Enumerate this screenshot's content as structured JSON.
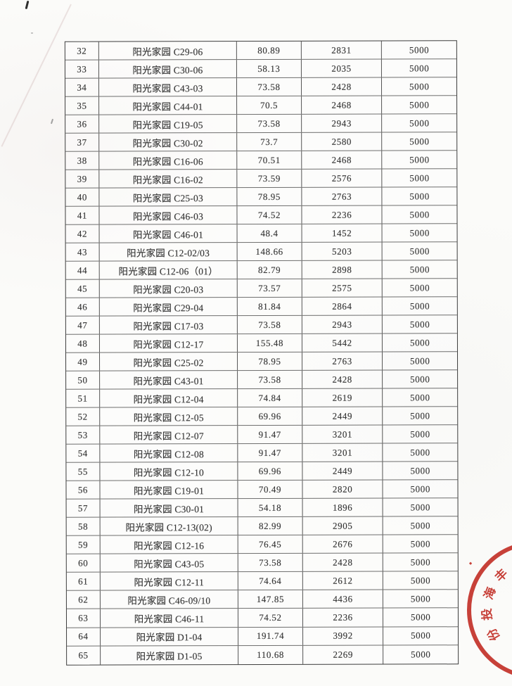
{
  "table": {
    "rows": [
      {
        "no": "32",
        "name": "阳光家园 C29-06",
        "area": "80.89",
        "amount": "2831",
        "deposit": "5000"
      },
      {
        "no": "33",
        "name": "阳光家园 C30-06",
        "area": "58.13",
        "amount": "2035",
        "deposit": "5000"
      },
      {
        "no": "34",
        "name": "阳光家园 C43-03",
        "area": "73.58",
        "amount": "2428",
        "deposit": "5000"
      },
      {
        "no": "35",
        "name": "阳光家园 C44-01",
        "area": "70.5",
        "amount": "2468",
        "deposit": "5000"
      },
      {
        "no": "36",
        "name": "阳光家园 C19-05",
        "area": "73.58",
        "amount": "2943",
        "deposit": "5000"
      },
      {
        "no": "37",
        "name": "阳光家园 C30-02",
        "area": "73.7",
        "amount": "2580",
        "deposit": "5000"
      },
      {
        "no": "38",
        "name": "阳光家园 C16-06",
        "area": "70.51",
        "amount": "2468",
        "deposit": "5000"
      },
      {
        "no": "39",
        "name": "阳光家园 C16-02",
        "area": "73.59",
        "amount": "2576",
        "deposit": "5000"
      },
      {
        "no": "40",
        "name": "阳光家园 C25-03",
        "area": "78.95",
        "amount": "2763",
        "deposit": "5000"
      },
      {
        "no": "41",
        "name": "阳光家园 C46-03",
        "area": "74.52",
        "amount": "2236",
        "deposit": "5000"
      },
      {
        "no": "42",
        "name": "阳光家园 C46-01",
        "area": "48.4",
        "amount": "1452",
        "deposit": "5000"
      },
      {
        "no": "43",
        "name": "阳光家园 C12-02/03",
        "area": "148.66",
        "amount": "5203",
        "deposit": "5000"
      },
      {
        "no": "44",
        "name": "阳光家园 C12-06（01）",
        "area": "82.79",
        "amount": "2898",
        "deposit": "5000"
      },
      {
        "no": "45",
        "name": "阳光家园 C20-03",
        "area": "73.57",
        "amount": "2575",
        "deposit": "5000"
      },
      {
        "no": "46",
        "name": "阳光家园 C29-04",
        "area": "81.84",
        "amount": "2864",
        "deposit": "5000"
      },
      {
        "no": "47",
        "name": "阳光家园 C17-03",
        "area": "73.58",
        "amount": "2943",
        "deposit": "5000"
      },
      {
        "no": "48",
        "name": "阳光家园 C12-17",
        "area": "155.48",
        "amount": "5442",
        "deposit": "5000"
      },
      {
        "no": "49",
        "name": "阳光家园 C25-02",
        "area": "78.95",
        "amount": "2763",
        "deposit": "5000"
      },
      {
        "no": "50",
        "name": "阳光家园 C43-01",
        "area": "73.58",
        "amount": "2428",
        "deposit": "5000"
      },
      {
        "no": "51",
        "name": "阳光家园 C12-04",
        "area": "74.84",
        "amount": "2619",
        "deposit": "5000"
      },
      {
        "no": "52",
        "name": "阳光家园 C12-05",
        "area": "69.96",
        "amount": "2449",
        "deposit": "5000"
      },
      {
        "no": "53",
        "name": "阳光家园 C12-07",
        "area": "91.47",
        "amount": "3201",
        "deposit": "5000"
      },
      {
        "no": "54",
        "name": "阳光家园 C12-08",
        "area": "91.47",
        "amount": "3201",
        "deposit": "5000"
      },
      {
        "no": "55",
        "name": "阳光家园 C12-10",
        "area": "69.96",
        "amount": "2449",
        "deposit": "5000"
      },
      {
        "no": "56",
        "name": "阳光家园 C19-01",
        "area": "70.49",
        "amount": "2820",
        "deposit": "5000"
      },
      {
        "no": "57",
        "name": "阳光家园 C30-01",
        "area": "54.18",
        "amount": "1896",
        "deposit": "5000"
      },
      {
        "no": "58",
        "name": "阳光家园 C12-13(02)",
        "area": "82.99",
        "amount": "2905",
        "deposit": "5000"
      },
      {
        "no": "59",
        "name": "阳光家园 C12-16",
        "area": "76.45",
        "amount": "2676",
        "deposit": "5000"
      },
      {
        "no": "60",
        "name": "阳光家园 C43-05",
        "area": "73.58",
        "amount": "2428",
        "deposit": "5000"
      },
      {
        "no": "61",
        "name": "阳光家园 C12-11",
        "area": "74.64",
        "amount": "2612",
        "deposit": "5000"
      },
      {
        "no": "62",
        "name": "阳光家园 C46-09/10",
        "area": "147.85",
        "amount": "4436",
        "deposit": "5000"
      },
      {
        "no": "63",
        "name": "阳光家园 C46-11",
        "area": "74.52",
        "amount": "2236",
        "deposit": "5000"
      },
      {
        "no": "64",
        "name": "阳光家园 D1-04",
        "area": "191.74",
        "amount": "3992",
        "deposit": "5000"
      },
      {
        "no": "65",
        "name": "阳光家园 D1-05",
        "area": "110.68",
        "amount": "2269",
        "deposit": "5000"
      }
    ]
  },
  "stamp": {
    "characters": [
      "丰",
      "海",
      "投",
      "份"
    ],
    "color": "#c0281f"
  }
}
